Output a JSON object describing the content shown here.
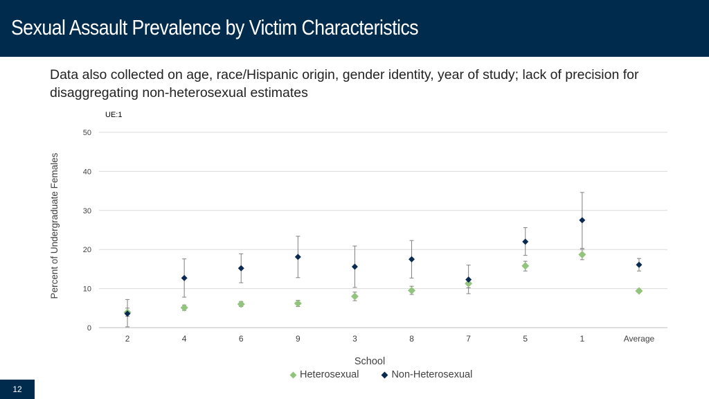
{
  "slide": {
    "title": "Sexual Assault Prevalence by Victim Characteristics",
    "subtitle": "Data also collected on age, race/Hispanic origin, gender identity, year of study; lack of precision for disaggregating non-heterosexual estimates",
    "ue_label": "UE:1",
    "page_number": "12"
  },
  "colors": {
    "title_bg": "#002b4c",
    "heterosexual": "#93c47d",
    "non_heterosexual": "#0b2a52",
    "gridline": "#d9d9d9",
    "error_bar": "#7f7f7f"
  },
  "chart_data": {
    "type": "scatter",
    "title": "",
    "xlabel": "School",
    "ylabel": "Percent of Undergraduate Females",
    "ylim": [
      0,
      50
    ],
    "yticks": [
      0,
      10,
      20,
      30,
      40,
      50
    ],
    "categories": [
      "2",
      "4",
      "6",
      "9",
      "3",
      "8",
      "7",
      "5",
      "1",
      "Average"
    ],
    "grid": true,
    "legend_position": "bottom",
    "series": [
      {
        "name": "Heterosexual",
        "values": [
          3.9,
          5.1,
          6.0,
          6.2,
          8.0,
          9.5,
          11.3,
          15.8,
          18.7,
          9.4
        ],
        "err_low": [
          2.9,
          4.4,
          5.4,
          5.4,
          6.9,
          8.5,
          10.2,
          14.5,
          17.4,
          9.1
        ],
        "err_high": [
          5.0,
          5.8,
          6.7,
          7.0,
          9.1,
          10.6,
          12.4,
          17.0,
          20.0,
          9.8
        ]
      },
      {
        "name": "Non-Heterosexual",
        "values": [
          3.6,
          12.7,
          15.2,
          18.1,
          15.6,
          17.5,
          12.3,
          22.0,
          27.5,
          16.1
        ],
        "err_low": [
          0.2,
          7.8,
          11.5,
          12.8,
          10.3,
          12.7,
          8.7,
          18.5,
          20.3,
          14.5
        ],
        "err_high": [
          7.2,
          17.6,
          18.9,
          23.4,
          20.9,
          22.3,
          16.0,
          25.6,
          34.6,
          17.7
        ]
      }
    ]
  }
}
